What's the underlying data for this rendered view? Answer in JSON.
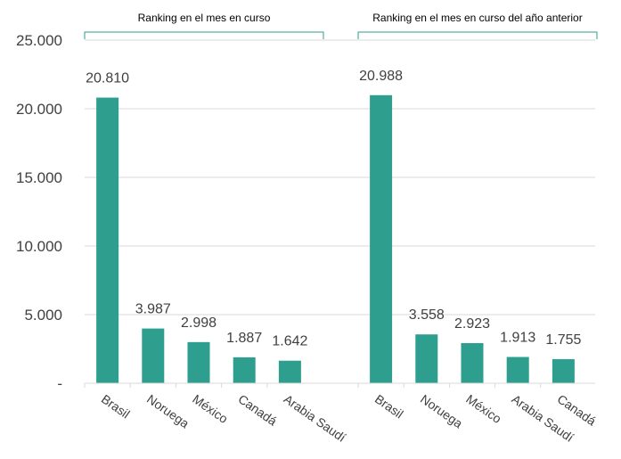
{
  "colors": {
    "bar": "#2e9e8f",
    "bracket": "#2e9e8f",
    "grid": "#d9d9d9"
  },
  "chart_data": {
    "type": "bar",
    "ylim": [
      0,
      25000
    ],
    "y_ticks": [
      {
        "value": 0,
        "label": "-"
      },
      {
        "value": 5000,
        "label": "5.000"
      },
      {
        "value": 10000,
        "label": "10.000"
      },
      {
        "value": 15000,
        "label": "15.000"
      },
      {
        "value": 20000,
        "label": "20.000"
      },
      {
        "value": 25000,
        "label": "25.000"
      }
    ],
    "groups": [
      {
        "label": "Ranking en el mes en curso",
        "categories": [
          "Brasil",
          "Noruega",
          "México",
          "Canadá",
          "Arabia Saudí"
        ],
        "values": [
          20810,
          3987,
          2998,
          1887,
          1642
        ],
        "value_labels": [
          "20.810",
          "3.987",
          "2.998",
          "1.887",
          "1.642"
        ]
      },
      {
        "label": "Ranking en el mes en curso del año anterior",
        "categories": [
          "Brasil",
          "Noruega",
          "México",
          "Arabia Saudí",
          "Canadá"
        ],
        "values": [
          20988,
          3558,
          2923,
          1913,
          1755
        ],
        "value_labels": [
          "20.988",
          "3.558",
          "2.923",
          "1.913",
          "1.755"
        ]
      }
    ],
    "grid": true,
    "legend": false
  }
}
